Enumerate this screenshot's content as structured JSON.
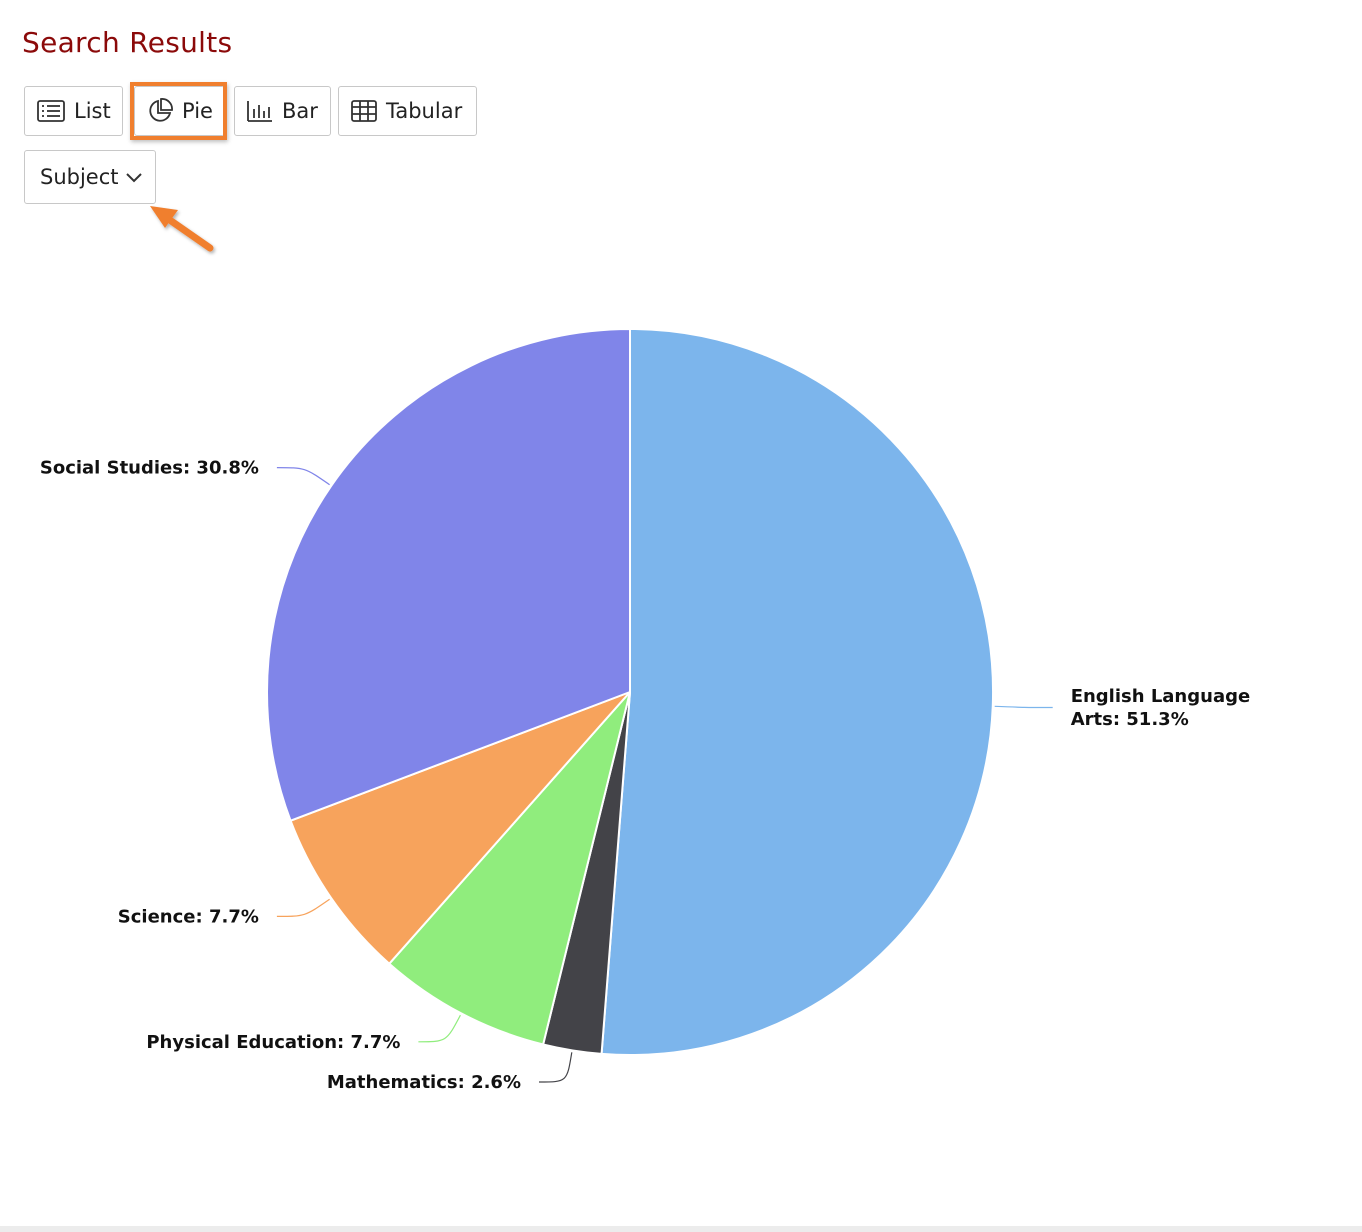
{
  "page": {
    "title": "Search Results"
  },
  "toolbar": {
    "buttons": [
      {
        "id": "list",
        "label": "List",
        "icon": "list-icon"
      },
      {
        "id": "pie",
        "label": "Pie",
        "icon": "pie-chart-icon",
        "active": true
      },
      {
        "id": "bar",
        "label": "Bar",
        "icon": "bar-chart-icon"
      },
      {
        "id": "tabular",
        "label": "Tabular",
        "icon": "table-icon"
      }
    ],
    "highlight_color": "#f07f2e"
  },
  "group_by": {
    "selected": "Subject",
    "icon": "chevron-down-icon"
  },
  "chart_data": {
    "type": "pie",
    "slices": [
      {
        "name": "English Language Arts",
        "label": "English Language Arts: 51.3%",
        "label_lines": [
          "English Language",
          "Arts: 51.3%"
        ],
        "value": 51.3,
        "color": "#7cb5ec"
      },
      {
        "name": "Mathematics",
        "label": "Mathematics: 2.6%",
        "label_lines": [
          "Mathematics: 2.6%"
        ],
        "value": 2.6,
        "color": "#434348"
      },
      {
        "name": "Physical Education",
        "label": "Physical Education: 7.7%",
        "label_lines": [
          "Physical Education: 7.7%"
        ],
        "value": 7.7,
        "color": "#90ed7d"
      },
      {
        "name": "Science",
        "label": "Science: 7.7%",
        "label_lines": [
          "Science: 7.7%"
        ],
        "value": 7.7,
        "color": "#f7a35c"
      },
      {
        "name": "Social Studies",
        "label": "Social Studies: 30.8%",
        "label_lines": [
          "Social Studies: 30.8%"
        ],
        "value": 30.8,
        "color": "#8085e9"
      }
    ]
  }
}
